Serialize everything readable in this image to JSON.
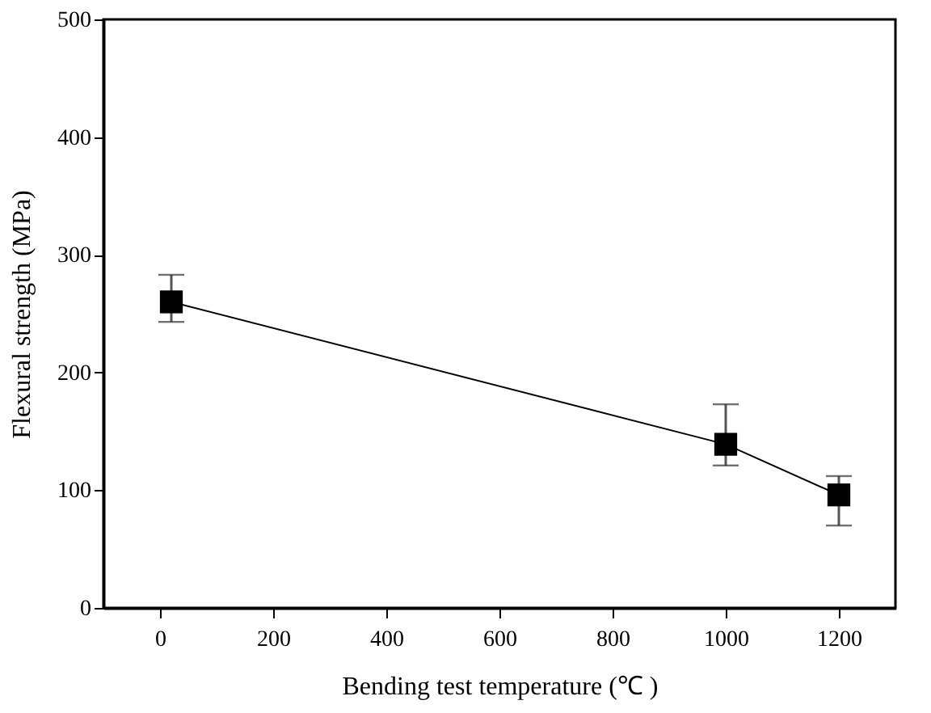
{
  "chart_data": {
    "type": "line",
    "xlabel": "Bending test temperature (℃ )",
    "ylabel": "Flexural strength (MPa)",
    "x": [
      20,
      1000,
      1200
    ],
    "series": [
      {
        "color": "#000000",
        "values": [
          260,
          139,
          96
        ],
        "errors": [
          [
            243,
            283
          ],
          [
            121,
            173
          ],
          [
            70,
            112
          ]
        ]
      }
    ],
    "xlim": [
      -100,
      1300
    ],
    "xticks": [
      0,
      200,
      400,
      600,
      800,
      1000,
      1200
    ],
    "ylim": [
      0,
      500
    ],
    "yticks": [
      0,
      100,
      200,
      300,
      400,
      500
    ],
    "marker": "square",
    "line_style": "solid",
    "grid": false
  }
}
